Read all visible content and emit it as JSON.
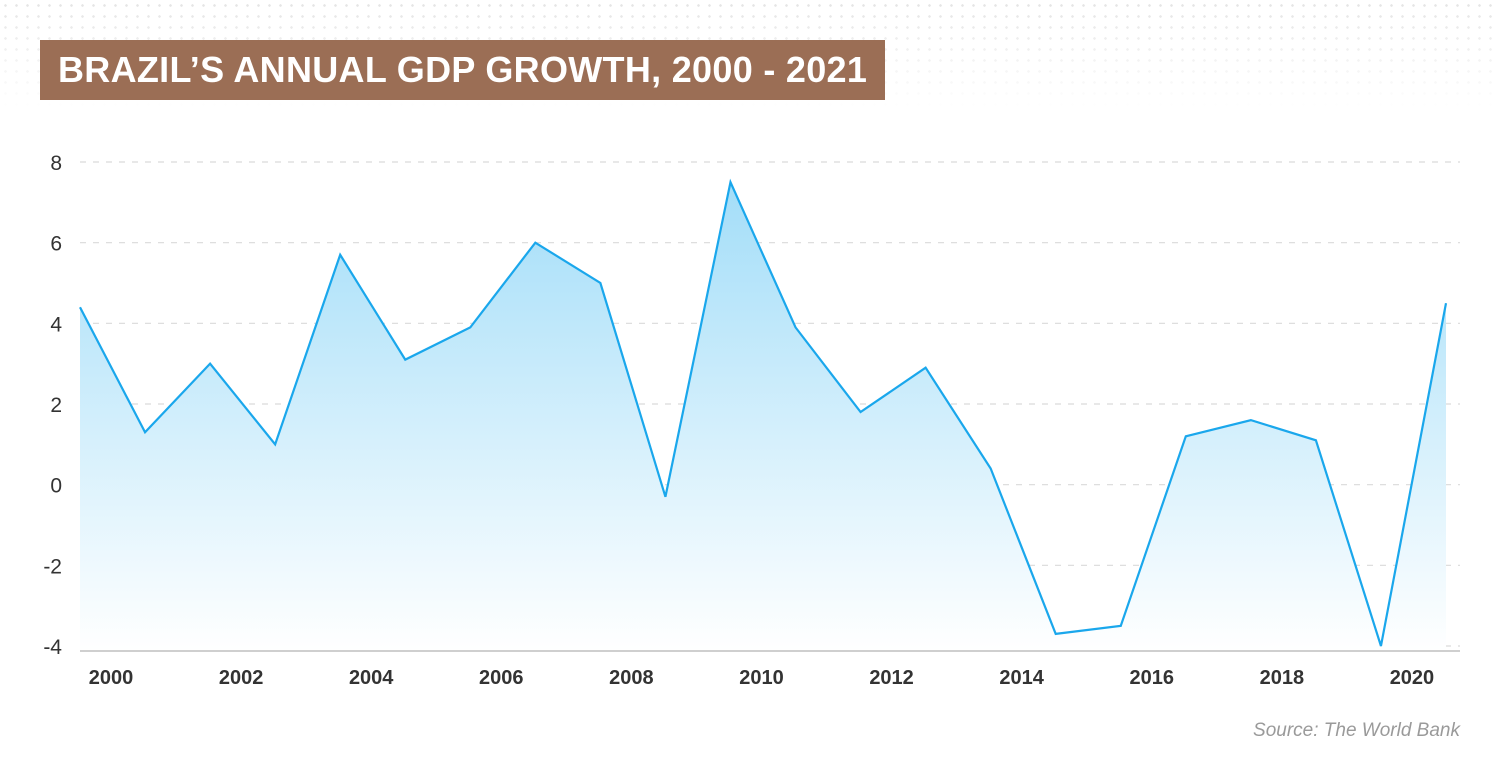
{
  "title": "BRAZIL’S ANNUAL GDP GROWTH, 2000 - 2021",
  "source": "Source: The World Bank",
  "colors": {
    "title_bg": "#9b6e55",
    "line": "#1aa7ec",
    "fill_top": "#9fdcf8",
    "grid": "#d9d9d9",
    "axis": "#cfcfcf"
  },
  "chart_data": {
    "type": "area",
    "title": "BRAZIL’S ANNUAL GDP GROWTH, 2000 - 2021",
    "xlabel": "",
    "ylabel": "",
    "x": [
      2000,
      2001,
      2002,
      2003,
      2004,
      2005,
      2006,
      2007,
      2008,
      2009,
      2010,
      2011,
      2012,
      2013,
      2014,
      2015,
      2016,
      2017,
      2018,
      2019,
      2020,
      2021
    ],
    "series": [
      {
        "values": [
          4.4,
          1.3,
          3.0,
          1.0,
          5.7,
          3.1,
          3.9,
          6.0,
          5.0,
          -0.3,
          7.5,
          3.9,
          1.8,
          2.9,
          0.4,
          -3.7,
          -3.5,
          1.2,
          1.6,
          1.1,
          -4.0,
          4.5
        ]
      }
    ],
    "x_tick_labels": [
      "2000",
      "2002",
      "2004",
      "2006",
      "2008",
      "2010",
      "2012",
      "2014",
      "2016",
      "2018",
      "2020"
    ],
    "y_ticks": [
      -4,
      -2,
      0,
      2,
      4,
      6,
      8
    ],
    "y_tick_labels": [
      "-4",
      "-2",
      "0",
      "2",
      "4",
      "6",
      "8"
    ],
    "ylim": [
      -4,
      8
    ],
    "xlim": [
      2000,
      2021
    ],
    "grid": true,
    "legend": "none"
  }
}
